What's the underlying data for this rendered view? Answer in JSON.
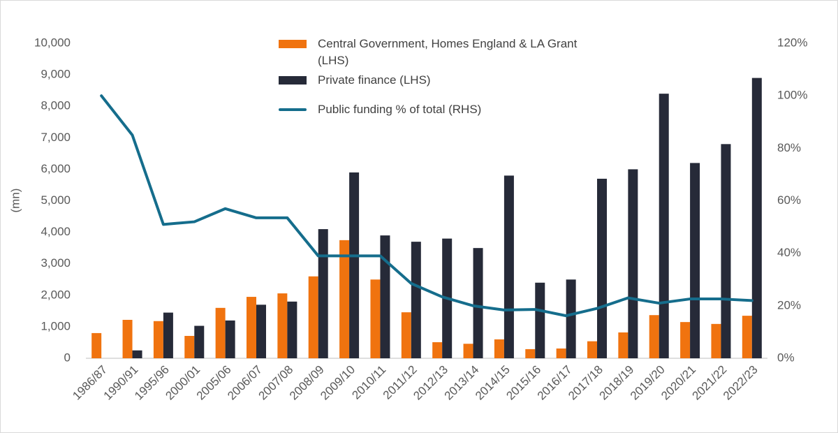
{
  "chart_data": {
    "type": "bar_line",
    "y_label": "(mn)",
    "categories": [
      "1986/87",
      "1990/91",
      "1995/96",
      "2000/01",
      "2005/06",
      "2006/07",
      "2007/08",
      "2008/09",
      "2009/10",
      "2010/11",
      "2011/12",
      "2012/13",
      "2013/14",
      "2014/15",
      "2015/16",
      "2016/17",
      "2017/18",
      "2018/19",
      "2019/20",
      "2020/21",
      "2021/22",
      "2022/23"
    ],
    "series": [
      {
        "name": "Central Government, Homes England & LA Grant (LHS)",
        "color": "#f0730f",
        "kind": "bar",
        "values": [
          800,
          1220,
          1180,
          710,
          1600,
          1950,
          2060,
          2600,
          3750,
          2500,
          1460,
          510,
          460,
          600,
          290,
          310,
          540,
          820,
          1370,
          1150,
          1090,
          1350
        ]
      },
      {
        "name": "Private finance (LHS)",
        "color": "#262a38",
        "kind": "bar",
        "values": [
          0,
          250,
          1450,
          1030,
          1200,
          1700,
          1800,
          4100,
          5900,
          3900,
          3700,
          3800,
          3500,
          5800,
          2400,
          2500,
          5700,
          6000,
          8400,
          6200,
          6800,
          8900
        ]
      },
      {
        "name": "Public funding % of total (RHS)",
        "color": "#156d8c",
        "kind": "line",
        "axis": "y2",
        "values": [
          100,
          85,
          51,
          52,
          57,
          53.5,
          53.5,
          39,
          39,
          39,
          28.5,
          23.4,
          20,
          18.4,
          18.6,
          16.2,
          19,
          23,
          21,
          22.6,
          22.6,
          22
        ]
      }
    ],
    "ylim": [
      0,
      10000
    ],
    "yticks": [
      0,
      {
        "value": 1000,
        "label": "1,000"
      },
      {
        "value": 2000,
        "label": "2,000"
      },
      {
        "value": 3000,
        "label": "3,000"
      },
      {
        "value": 4000,
        "label": "4,000"
      },
      {
        "value": 5000,
        "label": "5,000"
      },
      {
        "value": 6000,
        "label": "6,000"
      },
      {
        "value": 7000,
        "label": "7,000"
      },
      {
        "value": 8000,
        "label": "8,000"
      },
      {
        "value": 9000,
        "label": "9,000"
      },
      {
        "value": 10000,
        "label": "10,000"
      }
    ],
    "y2lim": [
      0,
      120
    ],
    "y2ticks": [
      {
        "value": 0,
        "label": "0%"
      },
      {
        "value": 20,
        "label": "20%"
      },
      {
        "value": 40,
        "label": "40%"
      },
      {
        "value": 60,
        "label": "60%"
      },
      {
        "value": 80,
        "label": "80%"
      },
      {
        "value": 100,
        "label": "100%"
      },
      {
        "value": 120,
        "label": "120%"
      }
    ],
    "grid": false
  }
}
